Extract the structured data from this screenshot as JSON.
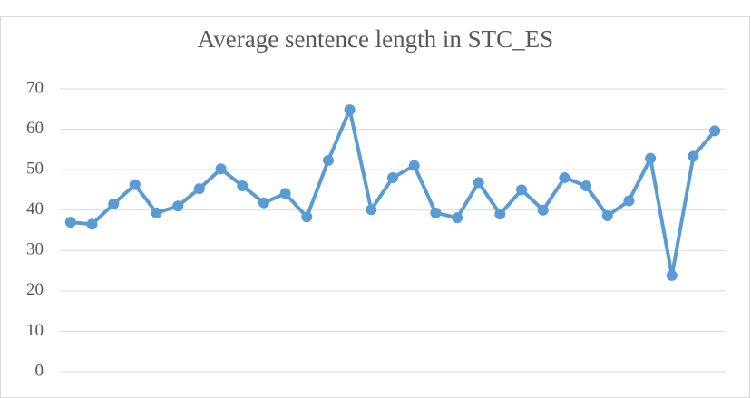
{
  "chart_data": {
    "type": "line",
    "title": "Average sentence length in STC_ES",
    "categories": [
      null,
      null,
      null,
      null,
      null,
      null,
      null,
      null,
      null,
      null,
      null,
      null,
      null,
      null,
      null,
      null,
      null,
      null,
      null,
      null,
      null,
      null,
      null,
      null,
      null,
      null,
      null,
      null,
      null,
      null,
      null
    ],
    "series": [
      {
        "color": "#5b9bd5",
        "values": [
          37,
          36.5,
          41.5,
          46.3,
          39.3,
          41,
          45.3,
          50.2,
          46,
          41.8,
          44.1,
          38.3,
          52.3,
          64.8,
          40.1,
          48,
          51,
          39.3,
          38.1,
          46.8,
          39,
          45,
          40,
          48,
          46,
          38.6,
          42.3,
          52.8,
          23.8,
          53.3,
          59.6
        ]
      }
    ],
    "ylim": [
      0,
      70
    ],
    "yticks": [
      0,
      10,
      20,
      30,
      40,
      50,
      60,
      70
    ],
    "grid": true
  }
}
